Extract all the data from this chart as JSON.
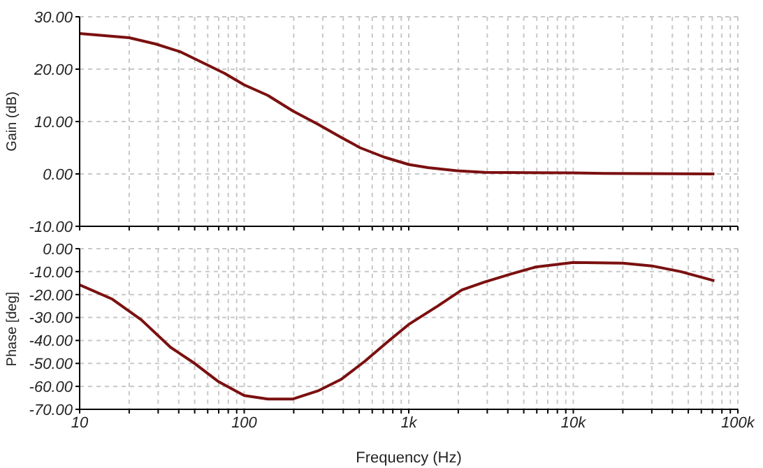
{
  "chart_data": [
    {
      "type": "line",
      "ylabel": "Gain (dB)",
      "tick_labels": "y",
      "grid": true,
      "xlim": [
        10,
        100000
      ],
      "ylim": [
        -10,
        30
      ],
      "log": "x",
      "xticks": [
        {
          "value": 10,
          "label": null
        },
        {
          "value": 20,
          "label": null
        },
        {
          "value": 30,
          "label": null
        },
        {
          "value": 40,
          "label": null
        },
        {
          "value": 50,
          "label": null
        },
        {
          "value": 60,
          "label": null
        },
        {
          "value": 70,
          "label": null
        },
        {
          "value": 80,
          "label": null
        },
        {
          "value": 90,
          "label": null
        },
        {
          "value": 100,
          "label": null
        },
        {
          "value": 200,
          "label": null
        },
        {
          "value": 300,
          "label": null
        },
        {
          "value": 400,
          "label": null
        },
        {
          "value": 500,
          "label": null
        },
        {
          "value": 600,
          "label": null
        },
        {
          "value": 700,
          "label": null
        },
        {
          "value": 800,
          "label": null
        },
        {
          "value": 900,
          "label": null
        },
        {
          "value": 1000,
          "label": null
        },
        {
          "value": 2000,
          "label": null
        },
        {
          "value": 3000,
          "label": null
        },
        {
          "value": 4000,
          "label": null
        },
        {
          "value": 5000,
          "label": null
        },
        {
          "value": 6000,
          "label": null
        },
        {
          "value": 7000,
          "label": null
        },
        {
          "value": 8000,
          "label": null
        },
        {
          "value": 9000,
          "label": null
        },
        {
          "value": 10000,
          "label": null
        },
        {
          "value": 20000,
          "label": null
        },
        {
          "value": 30000,
          "label": null
        },
        {
          "value": 40000,
          "label": null
        },
        {
          "value": 50000,
          "label": null
        },
        {
          "value": 60000,
          "label": null
        },
        {
          "value": 70000,
          "label": null
        },
        {
          "value": 80000,
          "label": null
        },
        {
          "value": 90000,
          "label": null
        },
        {
          "value": 100000,
          "label": null
        }
      ],
      "yticks": [
        {
          "value": -10,
          "label": "-10.00"
        },
        {
          "value": 0,
          "label": "0.00"
        },
        {
          "value": 10,
          "label": "10.00"
        },
        {
          "value": 20,
          "label": "20.00"
        },
        {
          "value": 30,
          "label": "30.00"
        }
      ],
      "x": [
        10,
        20,
        29,
        41,
        58,
        76,
        100,
        139,
        198,
        280,
        387,
        506,
        710,
        1000,
        1310,
        1970,
        2900,
        10000,
        15200,
        72000
      ],
      "series": [
        {
          "color": "#7b1010",
          "values": [
            26.8,
            26,
            24.8,
            23.3,
            21,
            19.2,
            17,
            15,
            12,
            9.5,
            7,
            5,
            3.2,
            1.8,
            1.2,
            0.6,
            0.3,
            0.2,
            0.1,
            0
          ]
        }
      ]
    },
    {
      "type": "line",
      "ylabel": "Phase [deg]",
      "xlabel": "Frequency (Hz)",
      "grid": true,
      "xlim": [
        10,
        100000
      ],
      "ylim": [
        -70,
        0
      ],
      "log": "x",
      "xticks": [
        {
          "value": 10,
          "label": "10"
        },
        {
          "value": 20,
          "label": null
        },
        {
          "value": 30,
          "label": null
        },
        {
          "value": 40,
          "label": null
        },
        {
          "value": 50,
          "label": null
        },
        {
          "value": 60,
          "label": null
        },
        {
          "value": 70,
          "label": null
        },
        {
          "value": 80,
          "label": null
        },
        {
          "value": 90,
          "label": null
        },
        {
          "value": 100,
          "label": "100"
        },
        {
          "value": 200,
          "label": null
        },
        {
          "value": 300,
          "label": null
        },
        {
          "value": 400,
          "label": null
        },
        {
          "value": 500,
          "label": null
        },
        {
          "value": 600,
          "label": null
        },
        {
          "value": 700,
          "label": null
        },
        {
          "value": 800,
          "label": null
        },
        {
          "value": 900,
          "label": null
        },
        {
          "value": 1000,
          "label": "1k"
        },
        {
          "value": 2000,
          "label": null
        },
        {
          "value": 3000,
          "label": null
        },
        {
          "value": 4000,
          "label": null
        },
        {
          "value": 5000,
          "label": null
        },
        {
          "value": 6000,
          "label": null
        },
        {
          "value": 7000,
          "label": null
        },
        {
          "value": 8000,
          "label": null
        },
        {
          "value": 9000,
          "label": null
        },
        {
          "value": 10000,
          "label": "10k"
        },
        {
          "value": 20000,
          "label": null
        },
        {
          "value": 30000,
          "label": null
        },
        {
          "value": 40000,
          "label": null
        },
        {
          "value": 50000,
          "label": null
        },
        {
          "value": 60000,
          "label": null
        },
        {
          "value": 70000,
          "label": null
        },
        {
          "value": 80000,
          "label": null
        },
        {
          "value": 90000,
          "label": null
        },
        {
          "value": 100000,
          "label": "100k"
        }
      ],
      "yticks": [
        {
          "value": -70,
          "label": "-70.00"
        },
        {
          "value": -60,
          "label": "-60.00"
        },
        {
          "value": -50,
          "label": "-50.00"
        },
        {
          "value": -40,
          "label": "-40.00"
        },
        {
          "value": -30,
          "label": "-30.00"
        },
        {
          "value": -20,
          "label": "-20.00"
        },
        {
          "value": -10,
          "label": "-10.00"
        },
        {
          "value": 0,
          "label": "0.00"
        }
      ],
      "x": [
        10,
        15.8,
        23.7,
        35.7,
        50,
        70,
        100,
        139,
        198,
        280,
        387,
        542,
        760,
        1000,
        1500,
        2100,
        2900,
        4200,
        5900,
        10000,
        20000,
        30000,
        45000,
        72000
      ],
      "series": [
        {
          "color": "#7b1010",
          "values": [
            -15.8,
            -22,
            -31,
            -43,
            -50,
            -58,
            -64,
            -65.5,
            -65.5,
            -62,
            -57,
            -49,
            -40,
            -33,
            -25,
            -18,
            -14.5,
            -11,
            -8,
            -6,
            -6.3,
            -7.5,
            -10,
            -14
          ]
        }
      ]
    }
  ]
}
